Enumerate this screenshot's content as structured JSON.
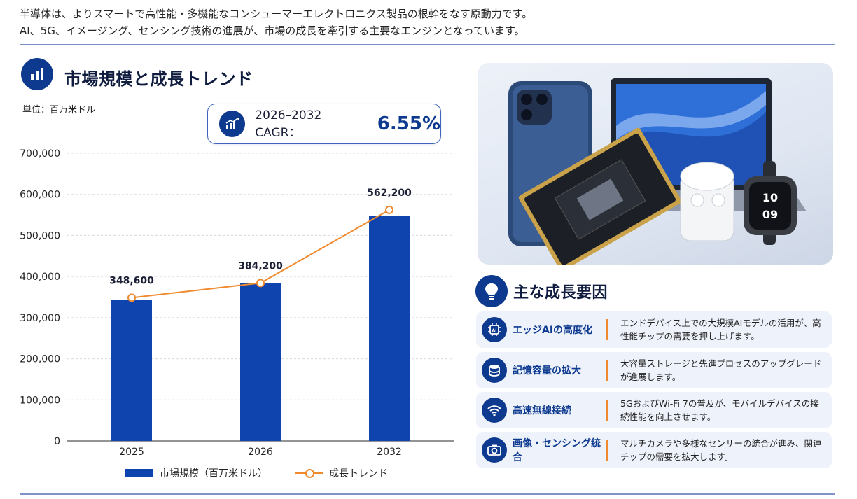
{
  "intro": {
    "line1": "半導体は、よりスマートで高性能・多機能なコンシューマーエレクトロニクス製品の根幹をなす原動力です。",
    "line2": "AI、5G、イメージング、センシング技術の進展が、市場の成長を牽引する主要なエンジンとなっています。"
  },
  "market": {
    "title": "市場規模と成長トレンド",
    "unit": "単位：百万米ドル",
    "cagr_label": "2026–2032 CAGR：",
    "cagr_value": "6.55%"
  },
  "legend": {
    "bar": "市場規模（百万米ドル）",
    "line": "成長トレンド"
  },
  "chart_data": {
    "type": "bar",
    "categories": [
      "2025",
      "2026",
      "2032"
    ],
    "series": [
      {
        "name": "市場規模（百万米ドル）",
        "type": "bar",
        "values": [
          343000,
          384200,
          548000
        ]
      },
      {
        "name": "成長トレンド",
        "type": "line",
        "values": [
          348600,
          384200,
          562200
        ]
      }
    ],
    "data_labels": [
      "348,600",
      "384,200",
      "562,200"
    ],
    "yticks": [
      "0",
      "100,000",
      "200,000",
      "300,000",
      "400,000",
      "500,000",
      "600,000",
      "700,000"
    ],
    "ylim": [
      0,
      700000
    ],
    "grid": true,
    "legend_position": "bottom",
    "colors": {
      "bar": "#0f44ae",
      "line": "#ef8a2e"
    }
  },
  "factors": {
    "title": "主な成長要因",
    "items": [
      {
        "icon": "ai-chip-icon",
        "name": "エッジAIの高度化",
        "desc": "エンドデバイス上での大規模AIモデルの活用が、高性能チップの需要を押し上げます。"
      },
      {
        "icon": "database-icon",
        "name": "記憶容量の拡大",
        "desc": "大容量ストレージと先進プロセスのアップグレードが進展します。"
      },
      {
        "icon": "wifi-icon",
        "name": "高速無線接続",
        "desc": "5GおよびWi-Fi 7の普及が、モバイルデバイスの接続性能を向上させます。"
      },
      {
        "icon": "camera-icon",
        "name": "画像・センシング統合",
        "desc": "マルチカメラや多様なセンサーの統合が進み、関連チップの需要を拡大します。"
      }
    ]
  },
  "photo": {
    "watch_time_hour": "10",
    "watch_time_min": "09"
  },
  "colors": {
    "accent": "#0d3a8f",
    "orange": "#ef8a2e",
    "rule": "#7f93c9"
  }
}
